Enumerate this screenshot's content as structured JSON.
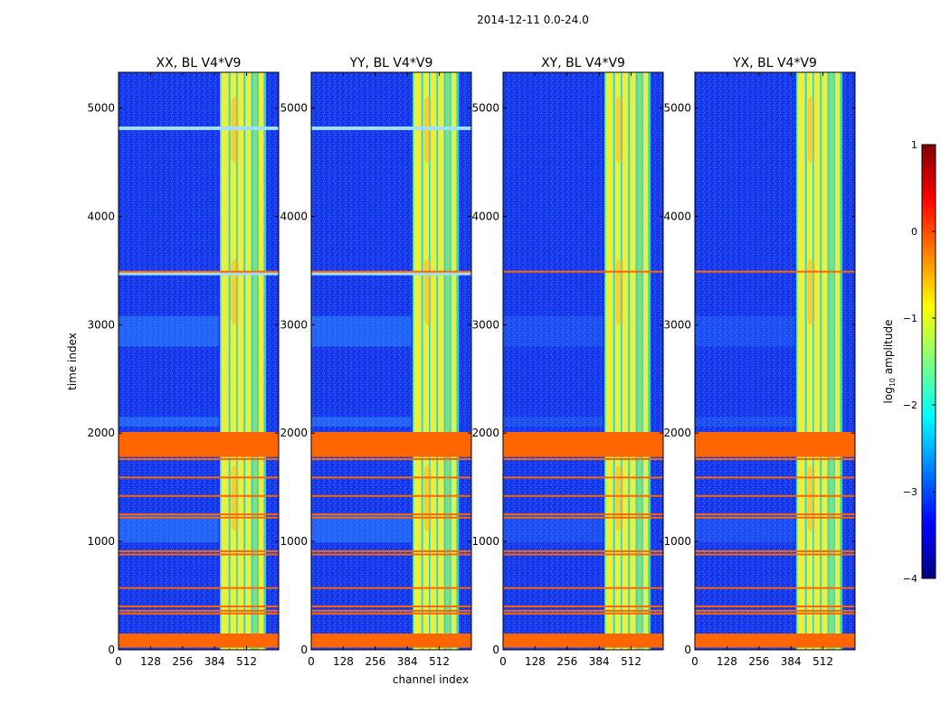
{
  "figure": {
    "suptitle": "2014-12-11 0.0-24.0",
    "xlabel": "channel index",
    "ylabel": "time index"
  },
  "colorbar": {
    "label": "log",
    "label_sub": "10",
    "label_rest": " amplitude",
    "ticks": [
      "1",
      "0",
      "−1",
      "−2",
      "−3",
      "−4"
    ],
    "tick_values": [
      1,
      0,
      -1,
      -2,
      -3,
      -4
    ],
    "range": [
      -4,
      1
    ],
    "colors": [
      "#00007f",
      "#0000ff",
      "#007fff",
      "#00ffff",
      "#7fff7f",
      "#ffff00",
      "#ff7f00",
      "#ff0000",
      "#7f0000"
    ]
  },
  "chart_data": {
    "type": "heatmap",
    "title": "2014-12-11 0.0-24.0",
    "xlabel": "channel index",
    "ylabel": "time index",
    "xlim": [
      0,
      640
    ],
    "ylim": [
      0,
      5330
    ],
    "x_ticks": [
      "0",
      "128",
      "256",
      "384",
      "512"
    ],
    "x_tick_values": [
      0,
      128,
      256,
      384,
      512
    ],
    "y_ticks": [
      "0",
      "1000",
      "2000",
      "3000",
      "4000",
      "5000"
    ],
    "y_tick_values": [
      0,
      1000,
      2000,
      3000,
      4000,
      5000
    ],
    "panels": [
      {
        "title": "XX, BL V4*V9"
      },
      {
        "title": "YY, BL V4*V9"
      },
      {
        "title": "XY, BL V4*V9"
      },
      {
        "title": "YX, BL V4*V9"
      }
    ],
    "colors": {
      "background": "#1a3cf0",
      "band_fill": "#3ad2c8",
      "stripe_yellow": "#e8f040",
      "stripe_green": "#7fe080",
      "flag": "#ff6600",
      "line_bright": "#9fe0ff"
    },
    "signal_bands": [
      {
        "from": 405,
        "to": 590
      },
      {
        "from": 410,
        "to": 440,
        "level": "yellow"
      },
      {
        "from": 447,
        "to": 470,
        "level": "yellow"
      },
      {
        "from": 476,
        "to": 500,
        "level": "yellow"
      },
      {
        "from": 507,
        "to": 530,
        "level": "yellow"
      },
      {
        "from": 537,
        "to": 555,
        "level": "green"
      },
      {
        "from": 560,
        "to": 580,
        "level": "yellow"
      }
    ],
    "flagged_time_ranges": [
      [
        20,
        150
      ],
      [
        1780,
        2010
      ]
    ],
    "flag_lines": [
      335,
      360,
      400,
      570,
      880,
      910,
      1220,
      1250,
      1420,
      1590,
      1760,
      3490
    ],
    "elevated_time_ranges": [
      [
        2060,
        2150
      ],
      [
        2800,
        3080
      ],
      [
        990,
        1250
      ]
    ]
  }
}
